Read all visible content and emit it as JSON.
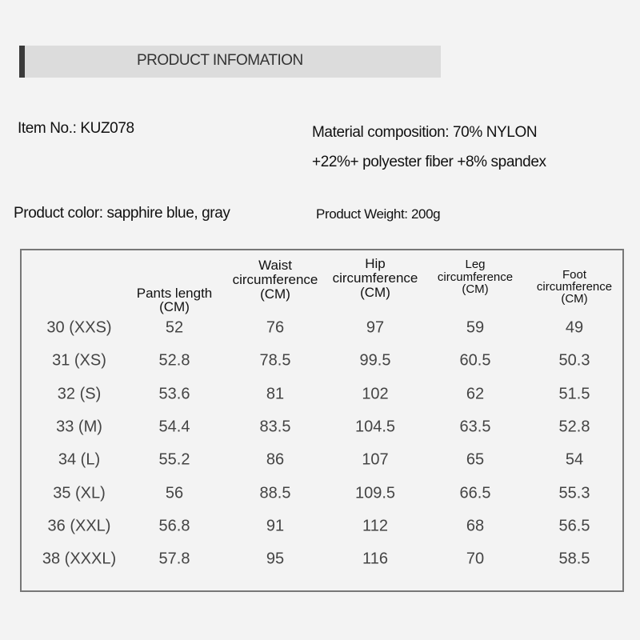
{
  "banner": {
    "title": "PRODUCT INFOMATION"
  },
  "info": {
    "item_no": "Item No.: KUZ078",
    "material_line1": "Material composition: 70% NYLON",
    "material_line2": "+22%+ polyester fiber +8% spandex",
    "color": "Product color: sapphire blue, gray",
    "weight": "Product Weight: 200g"
  },
  "table": {
    "headers": [
      {
        "l1": "",
        "l2": "Pants length",
        "l3": "(CM)"
      },
      {
        "l1": "Waist",
        "l2": "circumference",
        "l3": "(CM)"
      },
      {
        "l1": "Hip",
        "l2": "circumference",
        "l3": "(CM)"
      },
      {
        "l1": "Leg",
        "l2": "circumference",
        "l3": "(CM)"
      },
      {
        "l1": "Foot",
        "l2": "circumference",
        "l3": "(CM)"
      }
    ],
    "rows": [
      [
        "30  (XXS)",
        "52",
        "76",
        "97",
        "59",
        "49"
      ],
      [
        "31 (XS)",
        "52.8",
        "78.5",
        "99.5",
        "60.5",
        "50.3"
      ],
      [
        "32 (S)",
        "53.6",
        "81",
        "102",
        "62",
        "51.5"
      ],
      [
        "33  (M)",
        "54.4",
        "83.5",
        "104.5",
        "63.5",
        "52.8"
      ],
      [
        "34 (L)",
        "55.2",
        "86",
        "107",
        "65",
        "54"
      ],
      [
        "35 (XL)",
        "56",
        "88.5",
        "109.5",
        "66.5",
        "55.3"
      ],
      [
        "36 (XXL)",
        "56.8",
        "91",
        "112",
        "68",
        "56.5"
      ],
      [
        "38 (XXXL)",
        "57.8",
        "95",
        "116",
        "70",
        "58.5"
      ]
    ]
  }
}
